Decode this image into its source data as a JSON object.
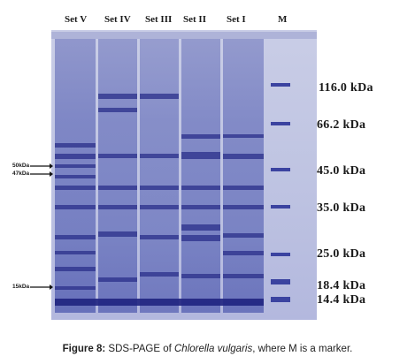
{
  "lanes": [
    "Set V",
    "Set IV",
    "Set III",
    "Set II",
    "Set I",
    "M"
  ],
  "marker_weights": [
    "116.0 kDa",
    "66.2 kDa",
    "45.0 kDa",
    "35.0 kDa",
    "25.0 kDa",
    "18.4 kDa",
    "14.4 kDa"
  ],
  "left_markers": [
    "50kDa",
    "47kDa",
    "15kDa"
  ],
  "caption": {
    "lead": "Figure 8:",
    "text1": "SDS-PAGE of",
    "species": "Chlorella vulgaris",
    "text2": ", where M is a marker."
  },
  "colors": {
    "gel_background": "#c3c8e4",
    "lane": "#7780c2",
    "band": "#2a2f8a",
    "marker_band": "#3b43a0"
  }
}
